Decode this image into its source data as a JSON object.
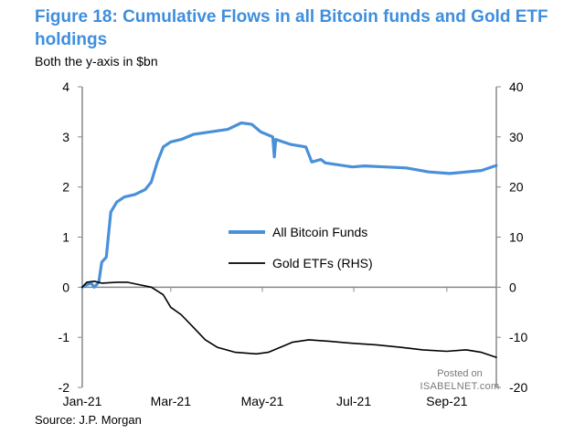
{
  "title": "Figure 18: Cumulative Flows in all Bitcoin funds and Gold ETF holdings",
  "subtitle": "Both the y-axis in $bn",
  "source": "Source: J.P. Morgan",
  "watermark": {
    "line1": "Posted on",
    "line2": "ISABELNET.com"
  },
  "colors": {
    "bitcoin": "#4a90d9",
    "gold": "#000000",
    "title": "#3e8ede"
  },
  "chart_data": {
    "type": "line",
    "xlim": [
      "2021-01-01",
      "2021-10-04"
    ],
    "x_tick_labels": [
      "Jan-21",
      "Mar-21",
      "May-21",
      "Jul-21",
      "Sep-21"
    ],
    "x_ticks": [
      "2021-01-01",
      "2021-03-01",
      "2021-05-01",
      "2021-07-01",
      "2021-09-01"
    ],
    "ylim_left": [
      -2,
      4
    ],
    "y_ticks_left": [
      -2,
      -1,
      0,
      1,
      2,
      3,
      4
    ],
    "ylim_right": [
      -20,
      40
    ],
    "y_ticks_right": [
      -20,
      -10,
      0,
      10,
      20,
      30,
      40
    ],
    "legend_position": "center-right",
    "series": [
      {
        "name": "All Bitcoin Funds",
        "axis": "left",
        "points": [
          [
            "2021-01-01",
            0.0
          ],
          [
            "2021-01-04",
            0.05
          ],
          [
            "2021-01-07",
            0.08
          ],
          [
            "2021-01-09",
            0.0
          ],
          [
            "2021-01-12",
            0.1
          ],
          [
            "2021-01-14",
            0.5
          ],
          [
            "2021-01-17",
            0.6
          ],
          [
            "2021-01-20",
            1.5
          ],
          [
            "2021-01-24",
            1.7
          ],
          [
            "2021-01-29",
            1.8
          ],
          [
            "2021-02-05",
            1.85
          ],
          [
            "2021-02-12",
            1.95
          ],
          [
            "2021-02-16",
            2.1
          ],
          [
            "2021-02-20",
            2.5
          ],
          [
            "2021-02-24",
            2.8
          ],
          [
            "2021-03-01",
            2.9
          ],
          [
            "2021-03-08",
            2.95
          ],
          [
            "2021-03-16",
            3.05
          ],
          [
            "2021-03-27",
            3.1
          ],
          [
            "2021-04-08",
            3.15
          ],
          [
            "2021-04-17",
            3.28
          ],
          [
            "2021-04-24",
            3.25
          ],
          [
            "2021-04-30",
            3.1
          ],
          [
            "2021-05-08",
            3.0
          ],
          [
            "2021-05-09",
            2.6
          ],
          [
            "2021-05-10",
            2.95
          ],
          [
            "2021-05-20",
            2.85
          ],
          [
            "2021-05-30",
            2.8
          ],
          [
            "2021-06-03",
            2.5
          ],
          [
            "2021-06-09",
            2.55
          ],
          [
            "2021-06-12",
            2.48
          ],
          [
            "2021-06-30",
            2.4
          ],
          [
            "2021-07-08",
            2.42
          ],
          [
            "2021-07-22",
            2.4
          ],
          [
            "2021-08-05",
            2.38
          ],
          [
            "2021-08-20",
            2.3
          ],
          [
            "2021-09-03",
            2.27
          ],
          [
            "2021-09-14",
            2.3
          ],
          [
            "2021-09-24",
            2.33
          ],
          [
            "2021-10-04",
            2.43
          ]
        ]
      },
      {
        "name": "Gold ETFs (RHS)",
        "axis": "right",
        "points": [
          [
            "2021-01-01",
            0.0
          ],
          [
            "2021-01-04",
            1.0
          ],
          [
            "2021-01-09",
            1.2
          ],
          [
            "2021-01-14",
            0.8
          ],
          [
            "2021-01-19",
            0.9
          ],
          [
            "2021-01-24",
            1.0
          ],
          [
            "2021-01-31",
            1.0
          ],
          [
            "2021-02-08",
            0.5
          ],
          [
            "2021-02-16",
            0.0
          ],
          [
            "2021-02-24",
            -1.5
          ],
          [
            "2021-03-01",
            -4.0
          ],
          [
            "2021-03-08",
            -5.5
          ],
          [
            "2021-03-16",
            -8.0
          ],
          [
            "2021-03-24",
            -10.5
          ],
          [
            "2021-04-01",
            -12.0
          ],
          [
            "2021-04-13",
            -13.0
          ],
          [
            "2021-04-27",
            -13.3
          ],
          [
            "2021-05-05",
            -13.0
          ],
          [
            "2021-05-13",
            -12.0
          ],
          [
            "2021-05-21",
            -11.0
          ],
          [
            "2021-06-01",
            -10.5
          ],
          [
            "2021-06-15",
            -10.8
          ],
          [
            "2021-06-30",
            -11.2
          ],
          [
            "2021-07-16",
            -11.5
          ],
          [
            "2021-08-01",
            -12.0
          ],
          [
            "2021-08-16",
            -12.5
          ],
          [
            "2021-09-01",
            -12.8
          ],
          [
            "2021-09-14",
            -12.5
          ],
          [
            "2021-09-24",
            -13.0
          ],
          [
            "2021-10-04",
            -14.0
          ]
        ]
      }
    ]
  }
}
